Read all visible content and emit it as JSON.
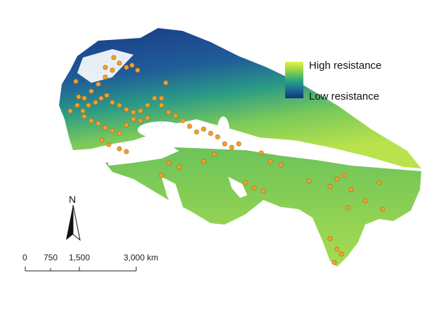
{
  "legend": {
    "high_label": "High resistance",
    "low_label": "Low resistance",
    "gradient_colors": [
      "#e6f24a",
      "#8fd14a",
      "#2fa87a",
      "#1b6f95",
      "#17327a"
    ]
  },
  "north_arrow": {
    "label": "N"
  },
  "scale_bar": {
    "ticks": [
      "0",
      "750",
      "1,500",
      "3,000 km"
    ]
  },
  "colors": {
    "occurrence_point": "#f0a030",
    "low_resistance": "#17327a",
    "high_resistance": "#e6f24a"
  }
}
